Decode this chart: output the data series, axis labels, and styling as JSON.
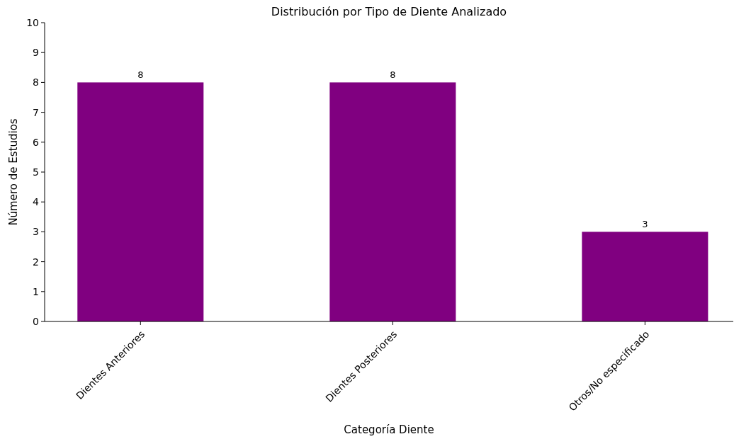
{
  "chart_data": {
    "type": "bar",
    "title": "Distribución por Tipo de Diente Analizado",
    "xlabel": "Categoría Diente",
    "ylabel": "Número de Estudios",
    "categories": [
      "Dientes Anteriores",
      "Dientes Posteriores",
      "Otros/No especificado"
    ],
    "values": [
      8,
      8,
      3
    ],
    "color": "#800080",
    "data_labels": true,
    "ylim": [
      0,
      10
    ],
    "yticks": [
      0,
      1,
      2,
      3,
      4,
      5,
      6,
      7,
      8,
      9,
      10
    ],
    "grid": false
  }
}
